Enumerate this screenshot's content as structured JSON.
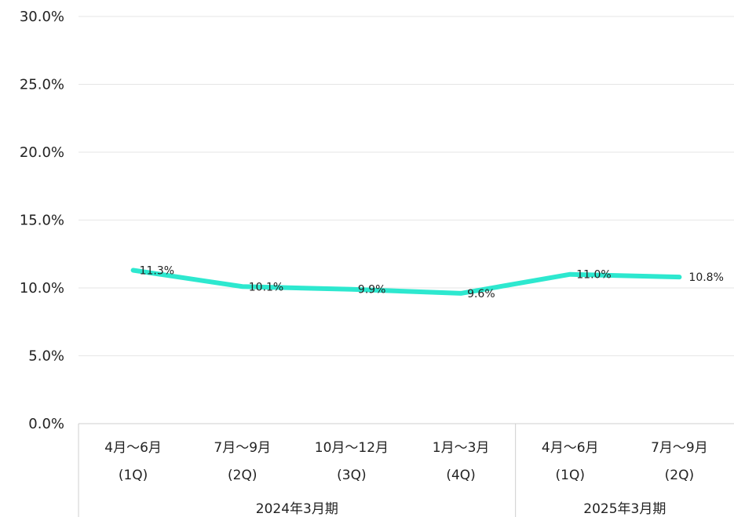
{
  "chart_data": {
    "type": "line",
    "title": "",
    "xlabel": "",
    "ylabel": "",
    "ylim": [
      0,
      30
    ],
    "y_ticks": [
      "0.0%",
      "5.0%",
      "10.0%",
      "15.0%",
      "20.0%",
      "25.0%",
      "30.0%"
    ],
    "grid": true,
    "legend": "none",
    "line_color": "#2de8cf",
    "categories": [
      {
        "month": "4月〜6月",
        "quarter": "(1Q)"
      },
      {
        "month": "7月〜9月",
        "quarter": "(2Q)"
      },
      {
        "month": "10月〜12月",
        "quarter": "(3Q)"
      },
      {
        "month": "1月〜3月",
        "quarter": "(4Q)"
      },
      {
        "month": "4月〜6月",
        "quarter": "(1Q)"
      },
      {
        "month": "7月〜9月",
        "quarter": "(2Q)"
      }
    ],
    "groups": [
      {
        "label": "2024年3月期",
        "count": 4
      },
      {
        "label": "2025年3月期",
        "count": 2
      }
    ],
    "series": [
      {
        "values": [
          11.3,
          10.1,
          9.9,
          9.6,
          11.0,
          10.8
        ]
      }
    ],
    "data_labels": [
      "11.3%",
      "10.1%",
      "9.9%",
      "9.6%",
      "11.0%",
      "10.8%"
    ]
  }
}
